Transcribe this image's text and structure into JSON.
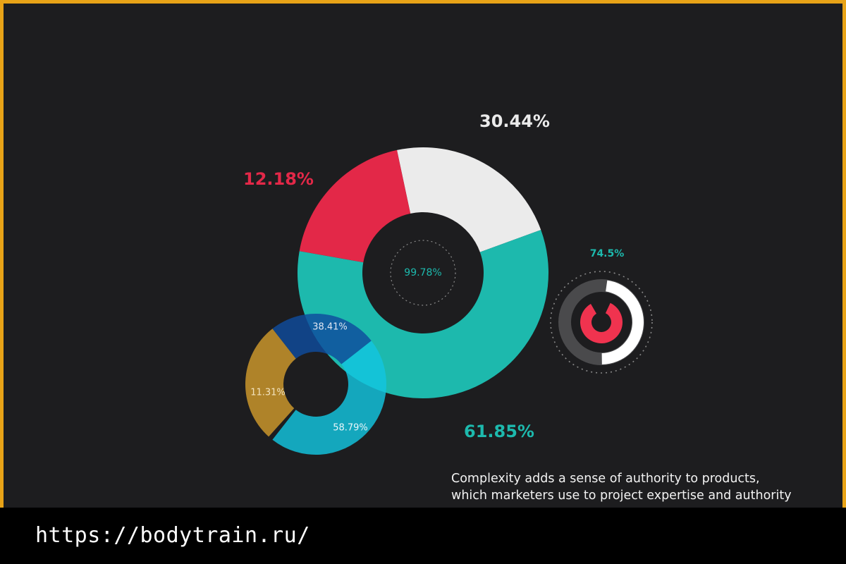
{
  "chart_data": [
    {
      "type": "pie",
      "variant": "donut",
      "slices": [
        {
          "value": 30.44,
          "label": "30.44%",
          "color": "#ebebeb"
        },
        {
          "value": 61.85,
          "label": "61.85%",
          "color": "#1db9ad"
        },
        {
          "value": 12.18,
          "label": "12.18%",
          "color": "#e32848"
        }
      ],
      "center_label": "99.78%",
      "center_label_color": "#1db9ad"
    },
    {
      "type": "pie",
      "variant": "donut",
      "slices": [
        {
          "value": 38.41,
          "label": "38.41%",
          "color": "#0f4c9e"
        },
        {
          "value": 58.79,
          "label": "58.79%",
          "color": "#12c6e0"
        },
        {
          "value": 11.31,
          "label": "11.31%",
          "color": "#c08f2a"
        }
      ]
    },
    {
      "type": "pie",
      "variant": "progress-ring",
      "value": 74.5,
      "label": "74.5%",
      "color": "#ffffff",
      "track_color": "#4a4a4c",
      "label_color": "#1db9ad",
      "accent_color": "#f0334f"
    }
  ],
  "caption": {
    "line1": "Complexity adds a sense of authority to products,",
    "line2": "which marketers use to project expertise and authority"
  },
  "footer": {
    "url": "https://bodytrain.ru/"
  },
  "colors": {
    "background": "#1d1d1f",
    "border": "#e8a317",
    "footer_bar": "#000000"
  }
}
